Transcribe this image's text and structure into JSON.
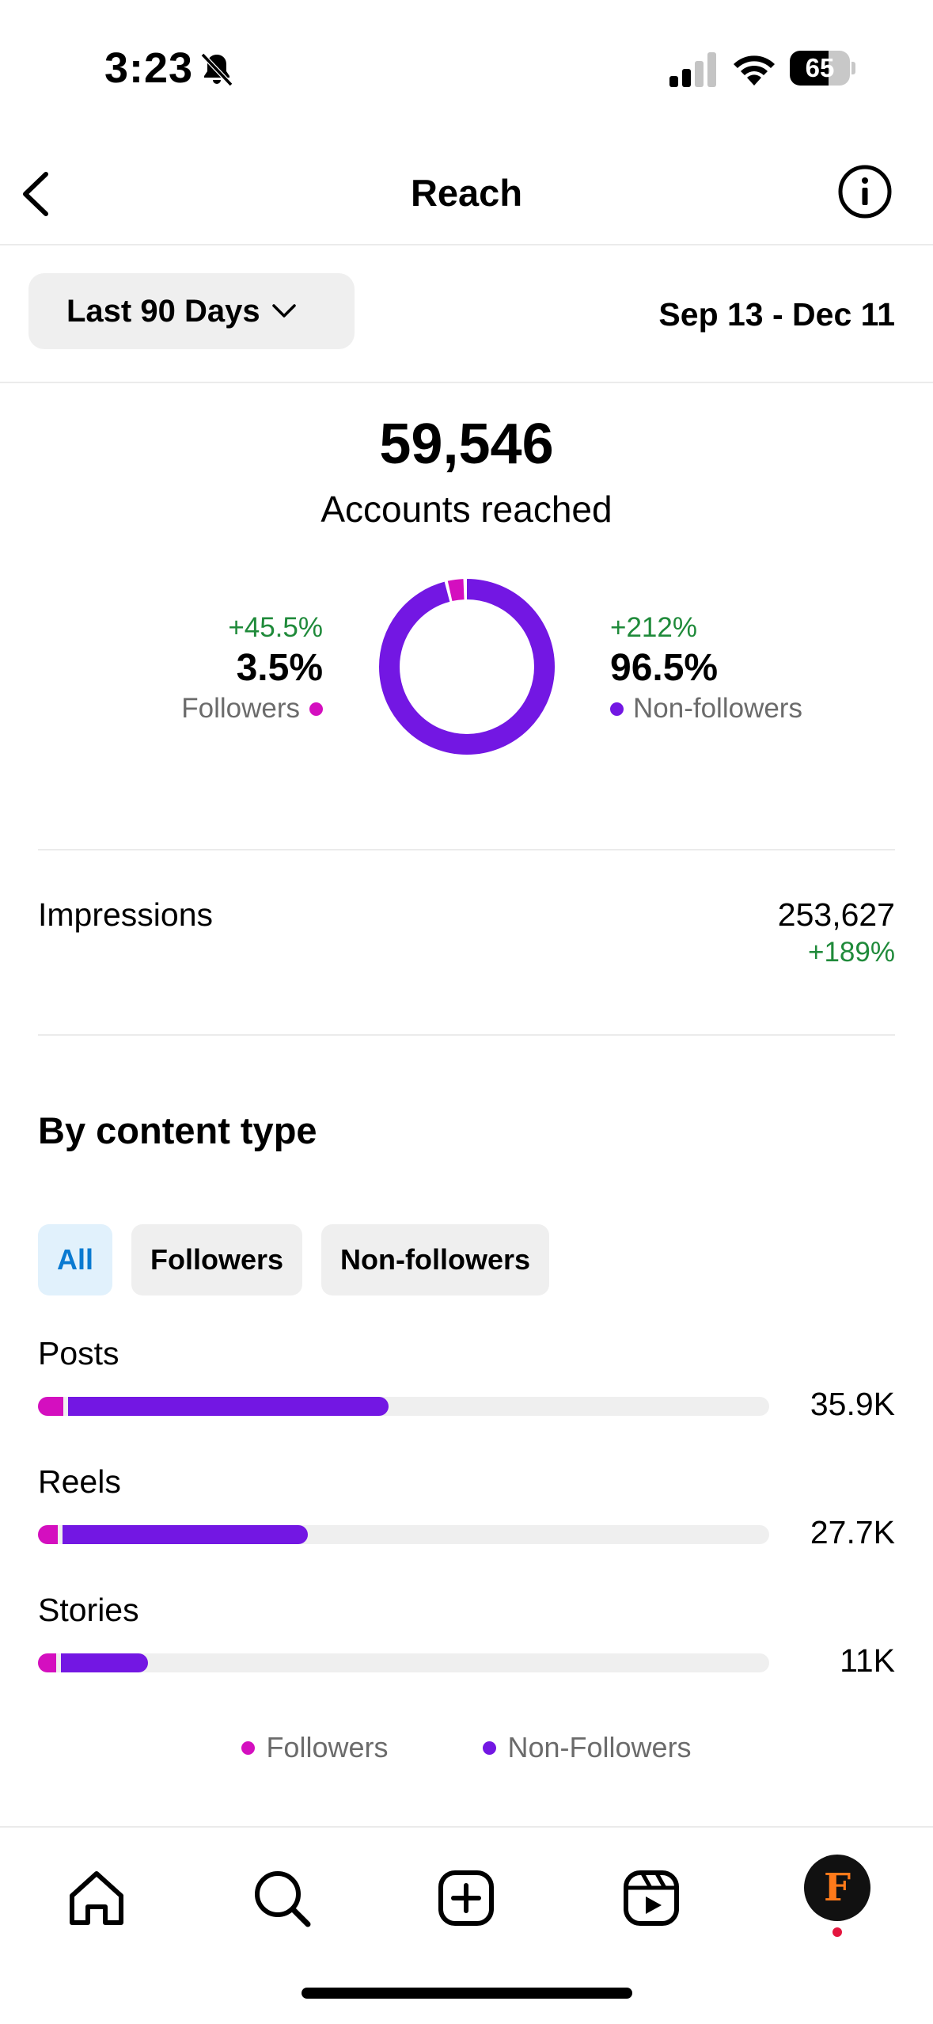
{
  "status_bar": {
    "time": "3:23",
    "battery_level": "65",
    "icons": [
      "bell-slash-icon",
      "cellular-signal-icon",
      "wifi-icon",
      "battery-icon"
    ]
  },
  "nav": {
    "title": "Reach",
    "icons": [
      "chevron-left-icon",
      "info-icon"
    ]
  },
  "filter": {
    "range_label": "Last 90 Days",
    "date_range": "Sep 13 - Dec 11"
  },
  "summary": {
    "value": "59,546",
    "label": "Accounts reached",
    "followers": {
      "delta": "+45.5%",
      "percent": "3.5%",
      "label": "Followers",
      "share": 3.5
    },
    "non_followers": {
      "delta": "+212%",
      "percent": "96.5%",
      "label": "Non-followers",
      "share": 96.5
    }
  },
  "impressions": {
    "label": "Impressions",
    "value": "253,627",
    "delta": "+189%"
  },
  "content_type": {
    "title": "By content type",
    "chips": [
      {
        "label": "All",
        "active": true
      },
      {
        "label": "Followers",
        "active": false
      },
      {
        "label": "Non-followers",
        "active": false
      }
    ],
    "max_value": 100,
    "rows": [
      {
        "label": "Posts",
        "value_label": "35.9K",
        "followers": 3.5,
        "non_followers": 44.4
      },
      {
        "label": "Reels",
        "value_label": "27.7K",
        "followers": 2.7,
        "non_followers": 34.2
      },
      {
        "label": "Stories",
        "value_label": "11K",
        "followers": 2.5,
        "non_followers": 12.5
      }
    ],
    "legend": [
      {
        "label": "Followers",
        "color": "#d40fbf"
      },
      {
        "label": "Non-Followers",
        "color": "#7317e3"
      }
    ]
  },
  "colors": {
    "followers": "#d40fbf",
    "non_followers": "#7317e3",
    "positive": "#1f8a3a",
    "active_chip": "#0a7ad1"
  },
  "tab_bar": {
    "items": [
      "home-icon",
      "search-icon",
      "create-icon",
      "reels-icon",
      "profile-avatar"
    ],
    "avatar_letter": "F"
  }
}
